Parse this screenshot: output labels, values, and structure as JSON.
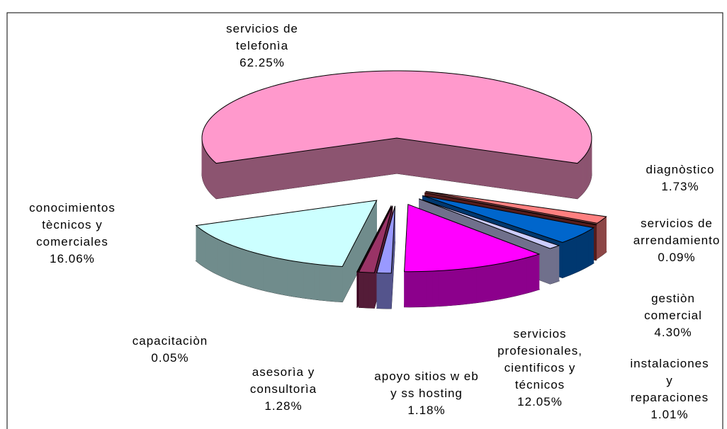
{
  "chart_data": {
    "type": "pie",
    "categories": [
      "servicios de\ntelefonìa",
      "diagnòstico",
      "servicios de\narrendamiento",
      "gestiòn\ncomercial",
      "instalaciones y\nreparaciones",
      "servicios\nprofesionales,\ncientificos y\ntécnicos",
      "apoyo sitios w eb\ny ss hosting",
      "asesorìa y\nconsultorìa",
      "capacitaciòn",
      "conocimientos\ntècnicos y\ncomerciales"
    ],
    "values": [
      62.25,
      1.73,
      0.09,
      4.3,
      1.01,
      12.05,
      1.18,
      1.28,
      0.05,
      16.06
    ],
    "value_labels": [
      "62.25%",
      "1.73%",
      "0.09%",
      "4.30%",
      "1.01%",
      "12.05%",
      "1.18%",
      "1.28%",
      "0.05%",
      "16.06%"
    ],
    "colors": [
      "#ff99cc",
      "#ff8080",
      "#993333",
      "#0066cc",
      "#ccccff",
      "#ff00ff",
      "#9999ff",
      "#993366",
      "#660033",
      "#ccffff"
    ]
  }
}
